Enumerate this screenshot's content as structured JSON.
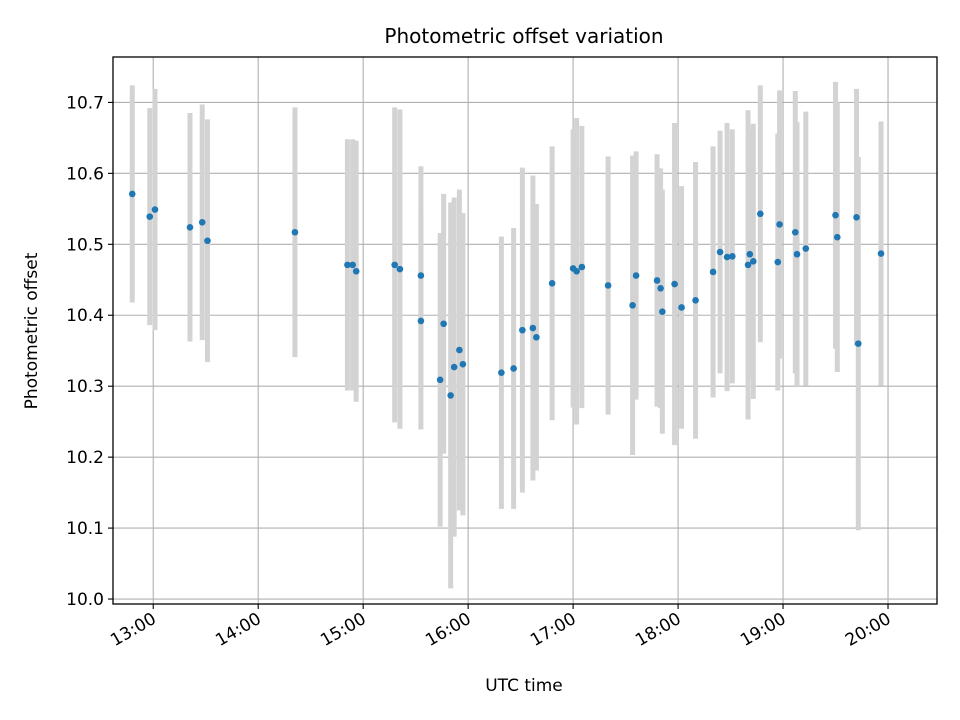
{
  "chart_data": {
    "type": "scatter",
    "title": "Photometric offset variation",
    "xlabel": "UTC time",
    "ylabel": "Photometric offset",
    "x_ticks": [
      "13:00",
      "14:00",
      "15:00",
      "16:00",
      "17:00",
      "18:00",
      "19:00",
      "20:00"
    ],
    "y_ticks": [
      "10.0",
      "10.1",
      "10.2",
      "10.3",
      "10.4",
      "10.5",
      "10.6",
      "10.7"
    ],
    "xlim": [
      "12:37",
      "20:28"
    ],
    "ylim": [
      9.993,
      10.764
    ],
    "grid": true,
    "point_color": "#1f77b4",
    "errorbar_color": "#d3d3d3",
    "series": [
      {
        "x": [
          "12:48",
          "12:58",
          "13:01",
          "13:21",
          "13:28",
          "13:31",
          "14:21",
          "14:51",
          "14:54",
          "14:56",
          "15:18",
          "15:21",
          "15:33",
          "15:33",
          "15:44",
          "15:46",
          "15:50",
          "15:52",
          "15:55",
          "15:57",
          "16:19",
          "16:26",
          "16:31",
          "16:37",
          "16:39",
          "16:48",
          "17:00",
          "17:02",
          "17:05",
          "17:20",
          "17:34",
          "17:36",
          "17:48",
          "17:50",
          "17:51",
          "17:58",
          "18:02",
          "18:10",
          "18:20",
          "18:24",
          "18:28",
          "18:31",
          "18:40",
          "18:41",
          "18:43",
          "18:47",
          "18:57",
          "18:58",
          "19:07",
          "19:08",
          "19:13",
          "19:30",
          "19:31",
          "19:42",
          "19:43",
          "19:56"
        ],
        "y": [
          10.571,
          10.539,
          10.549,
          10.524,
          10.531,
          10.505,
          10.517,
          10.471,
          10.471,
          10.462,
          10.471,
          10.465,
          10.456,
          10.392,
          10.309,
          10.388,
          10.287,
          10.327,
          10.351,
          10.331,
          10.319,
          10.325,
          10.379,
          10.382,
          10.369,
          10.445,
          10.466,
          10.462,
          10.468,
          10.442,
          10.414,
          10.456,
          10.449,
          10.438,
          10.405,
          10.444,
          10.411,
          10.421,
          10.461,
          10.489,
          10.482,
          10.483,
          10.471,
          10.486,
          10.476,
          10.543,
          10.475,
          10.528,
          10.517,
          10.486,
          10.494,
          10.541,
          10.51,
          10.538,
          10.36,
          10.487
        ],
        "yerr": [
          0.153,
          0.153,
          0.17,
          0.161,
          0.166,
          0.171,
          0.176,
          0.177,
          0.177,
          0.184,
          0.222,
          0.225,
          0.154,
          0.153,
          0.207,
          0.183,
          0.272,
          0.239,
          0.226,
          0.213,
          0.192,
          0.198,
          0.229,
          0.215,
          0.188,
          0.193,
          0.196,
          0.216,
          0.199,
          0.182,
          0.211,
          0.175,
          0.178,
          0.169,
          0.172,
          0.227,
          0.171,
          0.195,
          0.177,
          0.171,
          0.189,
          0.179,
          0.218,
          0.176,
          0.194,
          0.181,
          0.181,
          0.189,
          0.199,
          0.186,
          0.193,
          0.188,
          0.19,
          0.181,
          0.263,
          0.186
        ]
      }
    ]
  }
}
